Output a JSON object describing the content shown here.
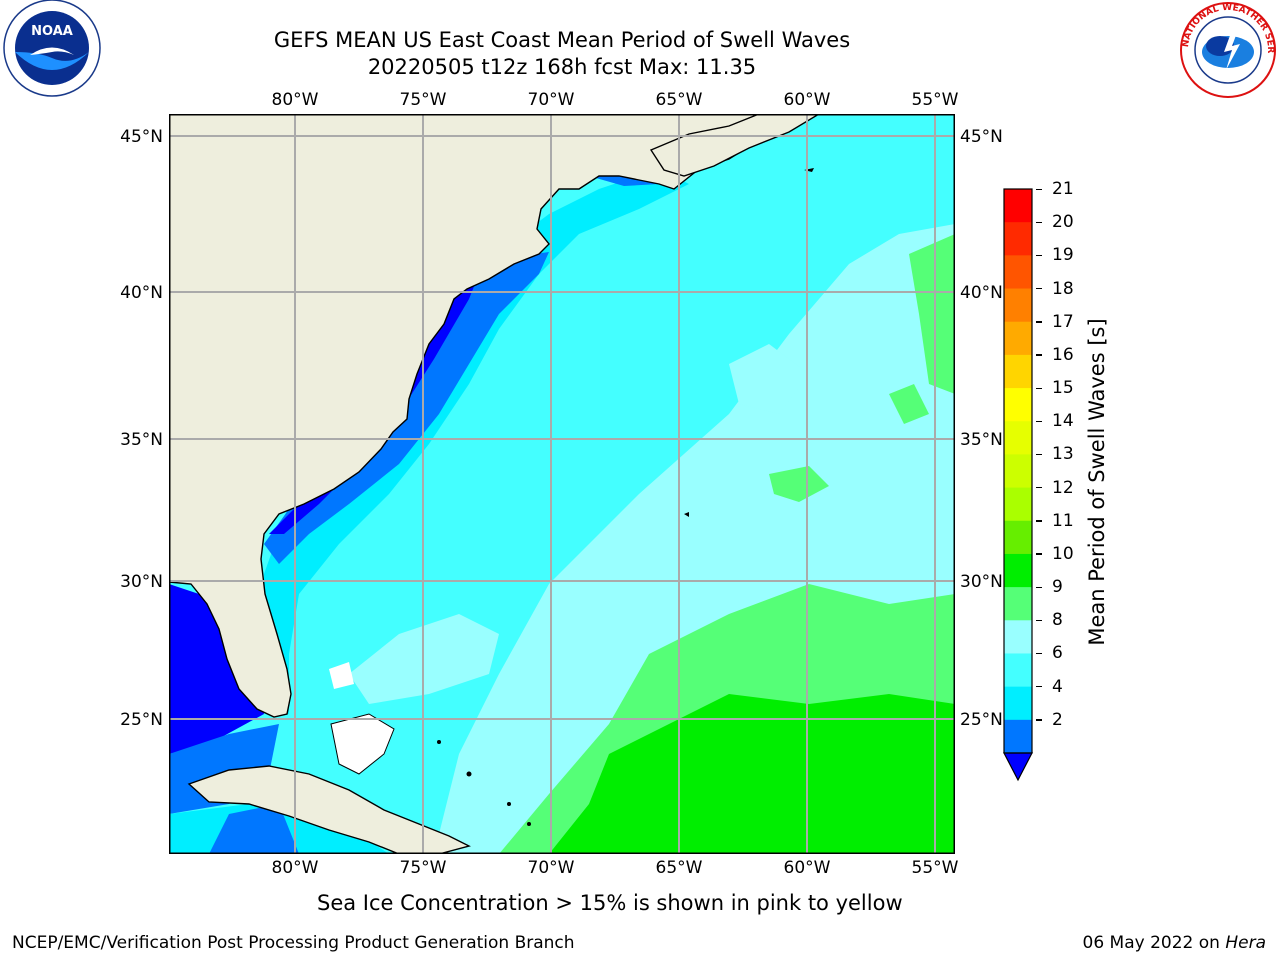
{
  "title": {
    "line1": "GEFS MEAN US East Coast Mean Period of Swell Waves",
    "line2": "20220505 t12z 168h fcst   Max: 11.35"
  },
  "map": {
    "lon_ticks": [
      "80°W",
      "75°W",
      "70°W",
      "65°W",
      "60°W",
      "55°W"
    ],
    "lat_ticks": [
      "45°N",
      "40°N",
      "35°N",
      "30°N",
      "25°N"
    ],
    "colors": {
      "land": "#eeeedd",
      "ocean_light": "#99ffff",
      "ocean_cyan": "#44ffff",
      "ocean_mid": "#00eeff",
      "ocean_blue": "#0077ff",
      "ocean_deep": "#0000ff",
      "green_light": "#55ff77",
      "green": "#00ee00"
    }
  },
  "colorbar": {
    "ticks": [
      "21",
      "20",
      "19",
      "18",
      "17",
      "16",
      "15",
      "14",
      "13",
      "12",
      "11",
      "10",
      "9",
      "8",
      "6",
      "4",
      "2"
    ],
    "colors": [
      "#ff0000",
      "#ff2a00",
      "#ff5500",
      "#ff8000",
      "#ffaa00",
      "#ffd500",
      "#ffff00",
      "#e6ff00",
      "#ccff00",
      "#aaff00",
      "#66ee00",
      "#00ee00",
      "#55ff77",
      "#99ffff",
      "#44ffff",
      "#00eeff",
      "#0077ff"
    ],
    "under_color": "#0000ff",
    "label": "Mean Period of Swell Waves [s]"
  },
  "note": "Sea Ice Concentration > 15% is shown in pink to yellow",
  "footer": {
    "credit": "NCEP/EMC/Verification Post Processing Product Generation Branch",
    "date": "06 May 2022 on ",
    "machine": "Hera"
  },
  "logos": {
    "left_icon": "noaa-logo-icon",
    "left_text": "NOAA",
    "right_icon": "nws-logo-icon",
    "right_text": "NATIONAL WEATHER SERVICE"
  }
}
